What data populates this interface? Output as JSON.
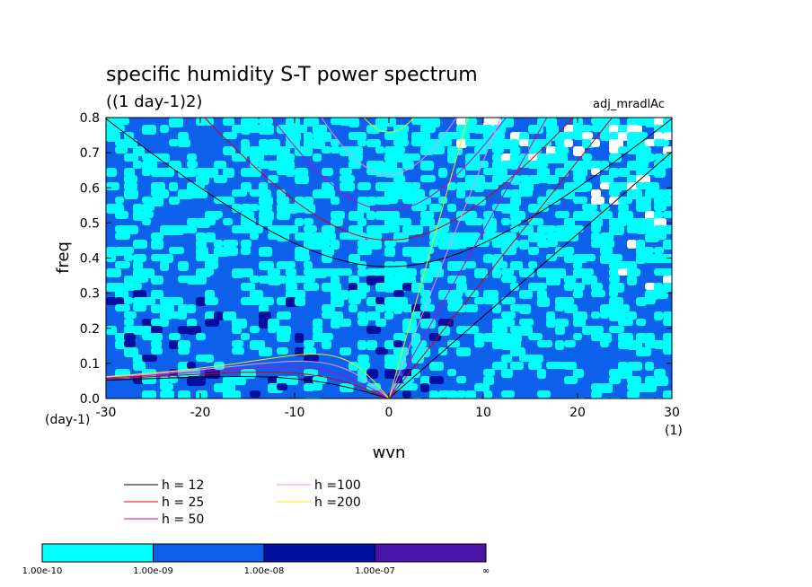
{
  "chart_data": {
    "type": "heatmap",
    "title": "specific humidity S-T power spectrum",
    "subtitle": "((1 day-1)2)",
    "tag": "adj_mradlAc",
    "xlabel": "wvn",
    "ylabel": "freq",
    "x_unit": "(1)",
    "y_unit": "(day-1)",
    "xlim": [
      -30,
      30
    ],
    "ylim": [
      0,
      0.8
    ],
    "x_ticks": [
      -30,
      -20,
      -10,
      0,
      10,
      20,
      30
    ],
    "y_ticks": [
      0.0,
      0.1,
      0.2,
      0.3,
      0.4,
      0.5,
      0.6,
      0.7,
      0.8
    ],
    "x_tick_labels": [
      "-30",
      "-20",
      "-10",
      "0",
      "10",
      "20",
      "30"
    ],
    "y_tick_labels": [
      "0.0",
      "0.1",
      "0.2",
      "0.3",
      "0.4",
      "0.5",
      "0.6",
      "0.7",
      "0.8"
    ],
    "dispersion_curves": [
      {
        "label": "h = 12",
        "h": 12,
        "color": "#000000"
      },
      {
        "label": "h = 25",
        "h": 25,
        "color": "#dd0000"
      },
      {
        "label": "h = 50",
        "h": 50,
        "color": "#cc00cc"
      },
      {
        "label": "h =100",
        "h": 100,
        "color": "#ff88ff"
      },
      {
        "label": "h =200",
        "h": 200,
        "color": "#eeee00"
      }
    ],
    "colorbar": {
      "levels": [
        "1.00e-10",
        "1.00e-09",
        "1.00e-08",
        "1.00e-07",
        "∞"
      ],
      "colors": [
        "#00ffff",
        "#0d60ec",
        "#000fa0",
        "#4a14a8"
      ]
    }
  }
}
